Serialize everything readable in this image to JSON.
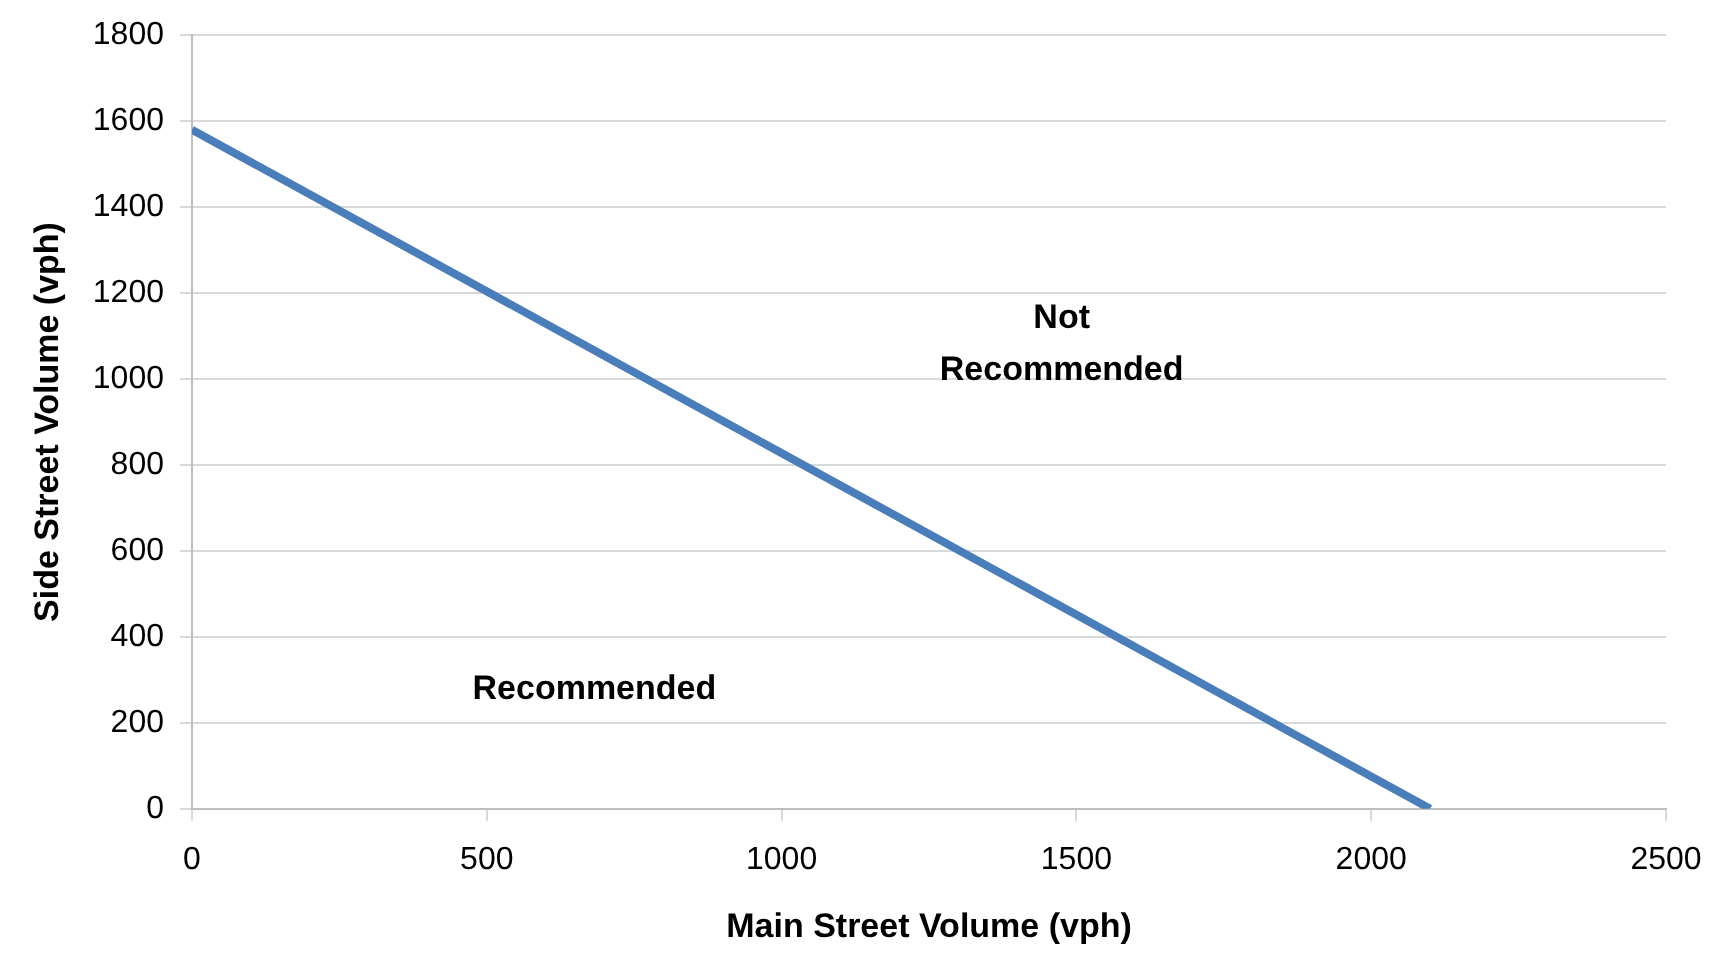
{
  "chart_data": {
    "type": "line",
    "xlabel": "Main Street Volume (vph)",
    "ylabel": "Side Street Volume (vph)",
    "x": [
      0,
      2100
    ],
    "series": [
      {
        "color": "#4a7ebb",
        "values": [
          1580,
          0
        ]
      }
    ],
    "xlim": [
      0,
      2500
    ],
    "xticks": [
      0,
      500,
      1000,
      1500,
      2000,
      2500
    ],
    "ylim": [
      0,
      1800
    ],
    "yticks": [
      0,
      200,
      400,
      600,
      800,
      1000,
      1200,
      1400,
      1600,
      1800
    ],
    "grid": "y",
    "legend": false,
    "marker": "none",
    "line_style": "solid",
    "annotations": [
      "Not Recommended",
      "Recommended"
    ]
  }
}
